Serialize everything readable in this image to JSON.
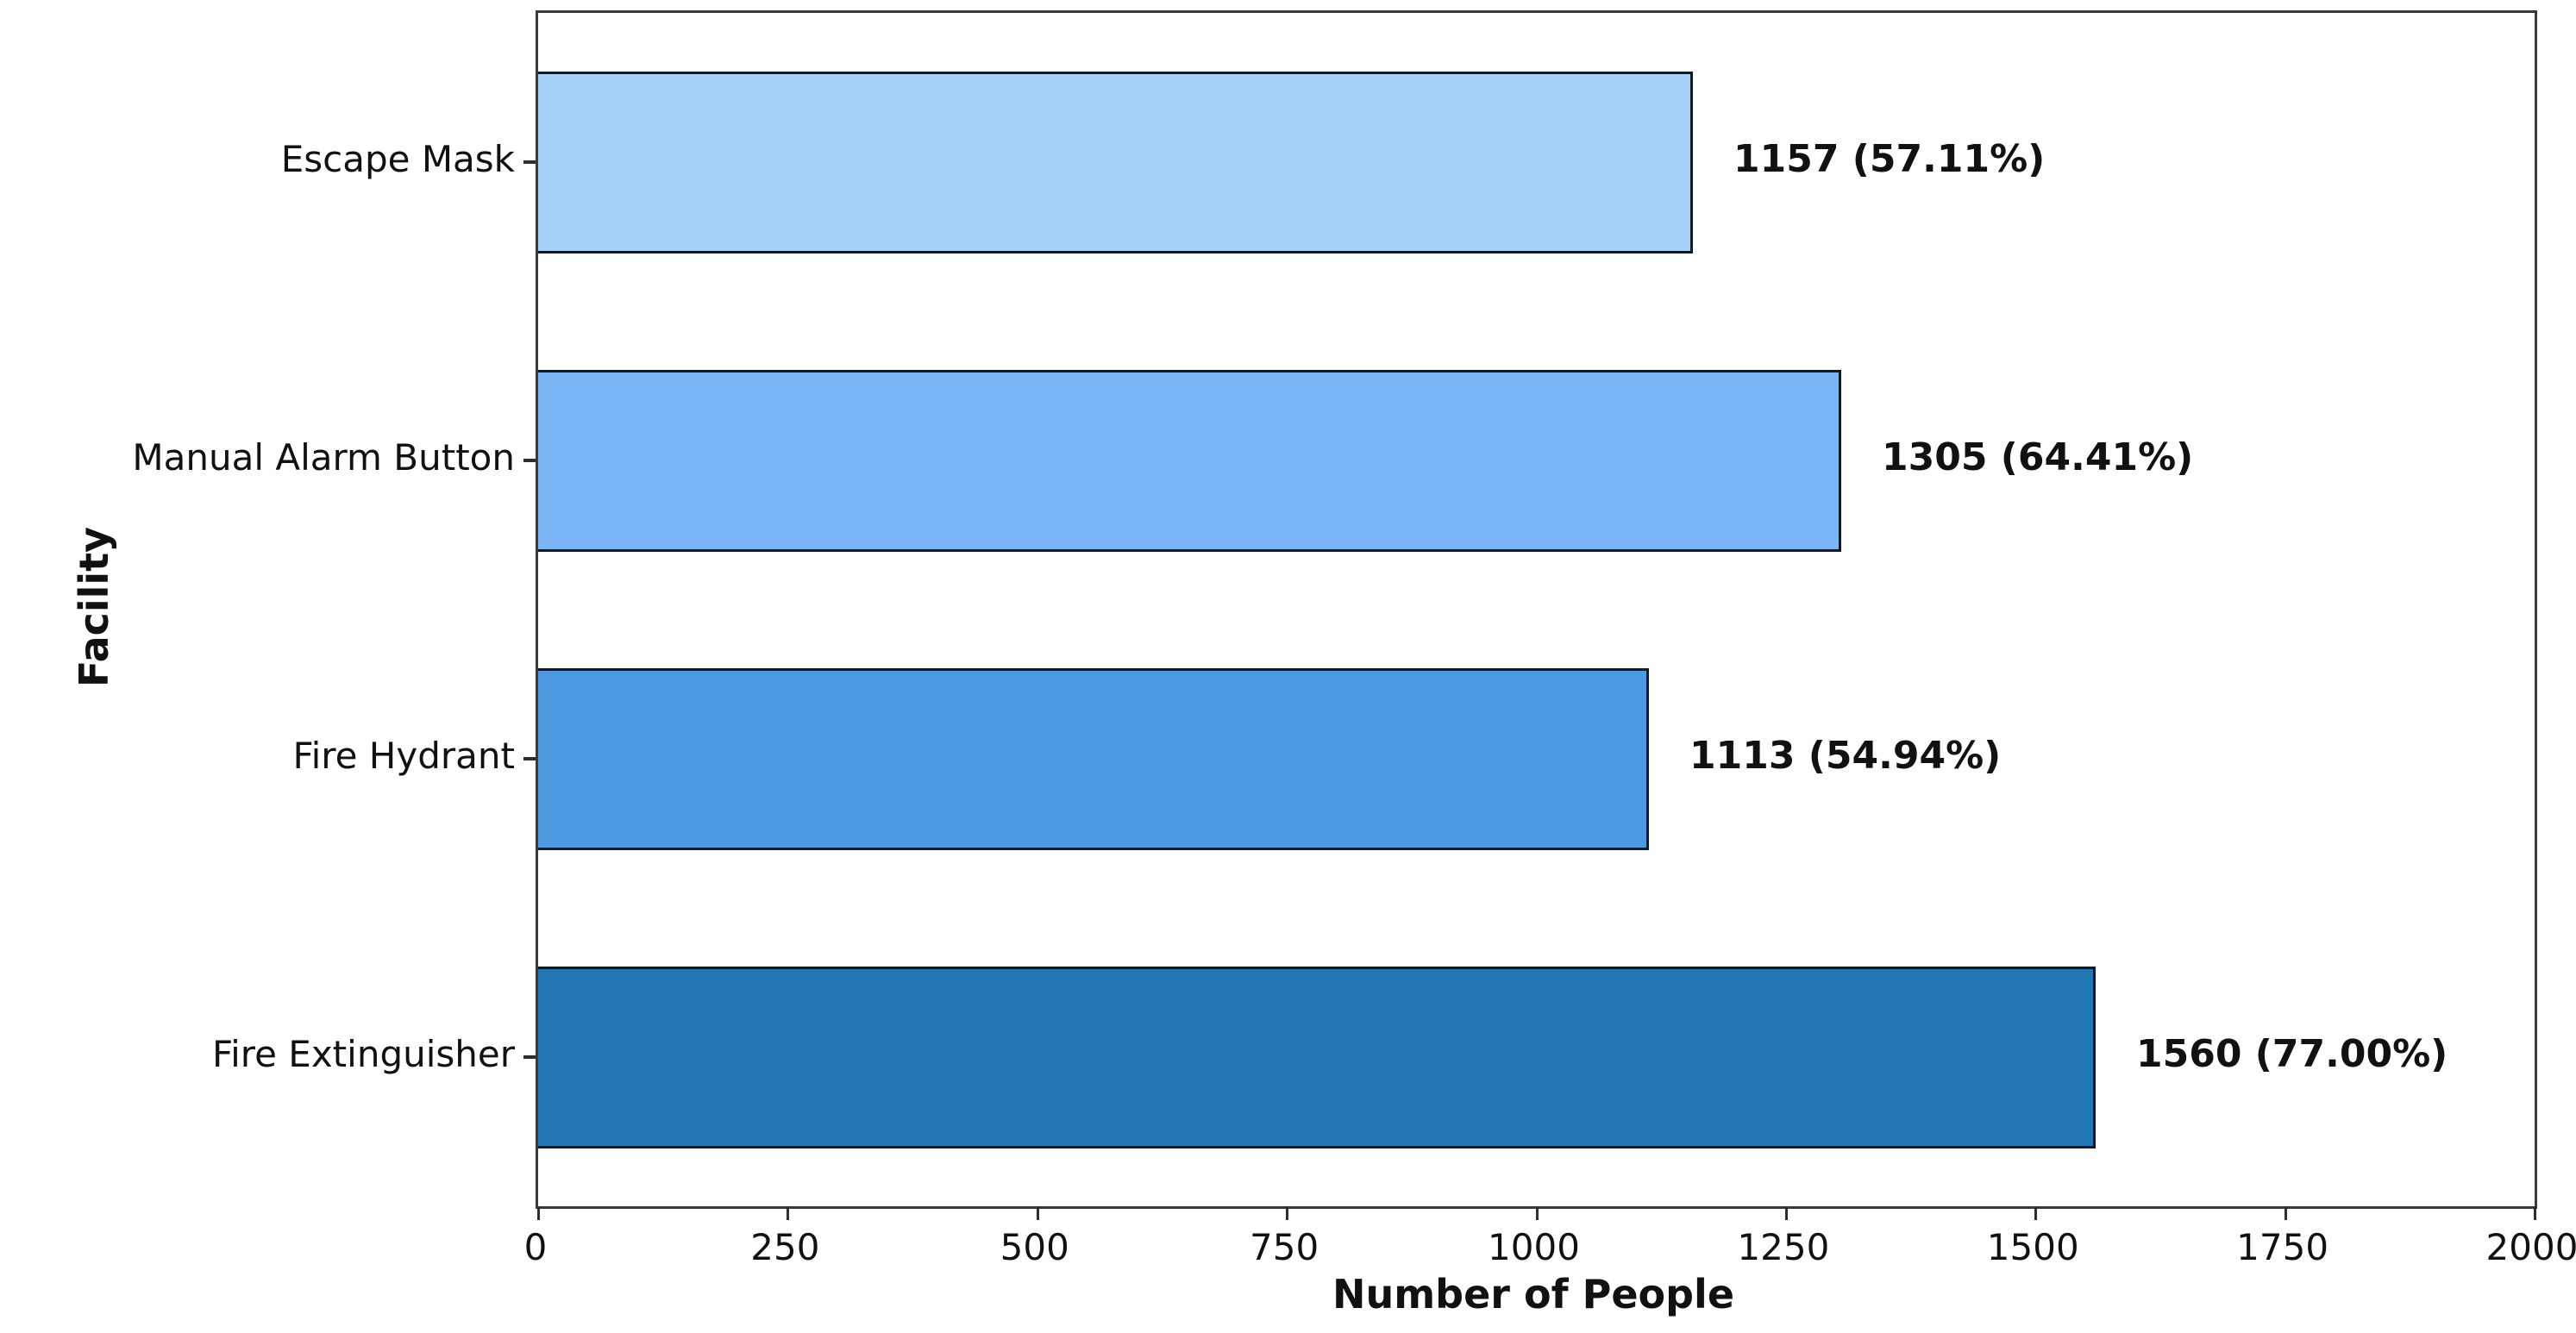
{
  "chart_data": {
    "type": "bar",
    "orientation": "horizontal",
    "title": "",
    "xlabel": "Number of People",
    "ylabel": "Facility",
    "categories": [
      "Escape Mask",
      "Manual Alarm Button",
      "Fire Hydrant",
      "Fire Extinguisher"
    ],
    "values": [
      1157,
      1305,
      1113,
      1560
    ],
    "percentages": [
      57.11,
      64.41,
      54.94,
      77.0
    ],
    "value_labels": [
      "1157 (57.11%)",
      "1305 (64.41%)",
      "1113 (54.94%)",
      "1560 (77.00%)"
    ],
    "bar_colors": [
      "#a7d1f8",
      "#7ab6f5",
      "#4d99e2",
      "#2177b4"
    ],
    "bar_edge_color": "#14181f",
    "xlim": [
      0,
      2000
    ],
    "x_ticks": [
      0,
      250,
      500,
      750,
      1000,
      1250,
      1500,
      1750,
      2000
    ],
    "grid": false,
    "legend": false,
    "axis_color": "#3a3a3a",
    "text_color": "#111111",
    "background_color": "#ffffff"
  }
}
